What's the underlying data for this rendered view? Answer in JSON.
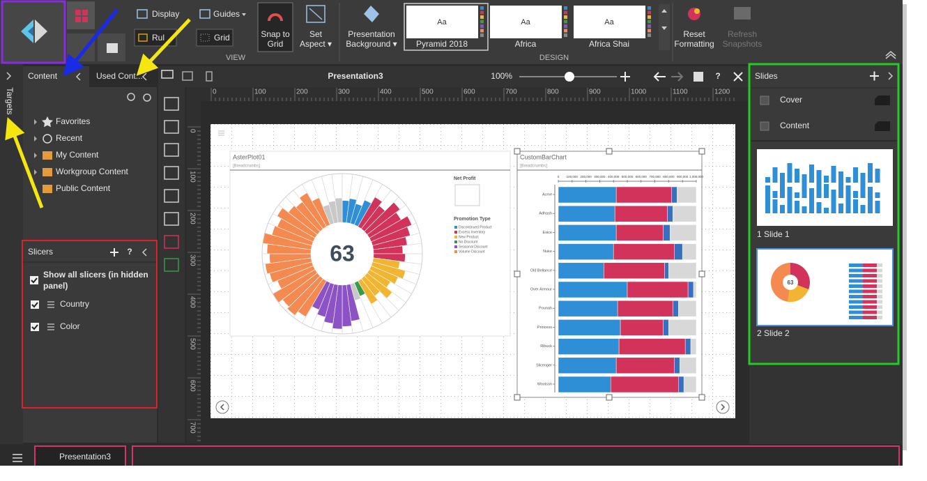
{
  "ribbon": {
    "display": "Display",
    "guides": "Guides",
    "ruler": "Rul",
    "grid": "Grid",
    "snap": [
      "Snap to",
      "Grid"
    ],
    "set_aspect": [
      "Set",
      "Aspect ▾"
    ],
    "view_group": "VIEW",
    "background": [
      "Presentation",
      "Background ▾"
    ],
    "themes": [
      {
        "sample": "Aa",
        "name": "Pyramid 2018"
      },
      {
        "sample": "Aa",
        "name": "Africa"
      },
      {
        "sample": "Aa",
        "name": "Africa Shai"
      }
    ],
    "design_group": "DESIGN",
    "reset": [
      "Reset",
      "Formatting"
    ],
    "refresh": [
      "Refresh",
      "Snapshots"
    ]
  },
  "left": {
    "targets": "Targets",
    "tabs": [
      "Content",
      "Used Cont..."
    ],
    "tree": [
      "Favorites",
      "Recent",
      "My Content",
      "Workgroup Content",
      "Public Content"
    ],
    "slicers": {
      "title": "Slicers",
      "help": "?",
      "show_all": [
        "Show all slicers (in hidden",
        "panel)"
      ],
      "items": [
        "Country",
        "Color"
      ]
    }
  },
  "toolbar": {
    "title": "Presentation3",
    "zoom": "100%",
    "help": "?"
  },
  "rulers": {
    "horizontal": [
      "0",
      "100",
      "200",
      "300",
      "400",
      "500",
      "600",
      "700",
      "800",
      "900",
      "1000",
      "1100",
      "1200"
    ],
    "vertical": [
      "0",
      "100",
      "200",
      "300",
      "400",
      "500",
      "600",
      "700"
    ]
  },
  "aster": {
    "title": "AsterPlot01",
    "breadcrumbs": "[Breadcrumbs]",
    "center": "63",
    "net_profit": "Net Profit",
    "promo_title": "Promotion Type",
    "legend": [
      {
        "name": "Discontinued Product",
        "color": "#2e8fd6"
      },
      {
        "name": "Excess Inventory",
        "color": "#d1335b"
      },
      {
        "name": "New Product",
        "color": "#f2b531"
      },
      {
        "name": "No Discount",
        "color": "#3a9a48"
      },
      {
        "name": "Seasonal Discount",
        "color": "#8c52c6"
      },
      {
        "name": "Volume Discount",
        "color": "#f58a50"
      }
    ],
    "wedges": [
      [
        "#2e8fd6",
        0.45
      ],
      [
        "#2e8fd6",
        0.5
      ],
      [
        "#2e8fd6",
        0.42
      ],
      [
        "#2e8fd6",
        0.55
      ],
      [
        "#d1335b",
        0.7
      ],
      [
        "#d1335b",
        0.6
      ],
      [
        "#d1335b",
        0.85
      ],
      [
        "#d1335b",
        0.75
      ],
      [
        "#d1335b",
        0.9
      ],
      [
        "#d1335b",
        0.8
      ],
      [
        "#d1335b",
        0.7
      ],
      [
        "#d1335b",
        0.6
      ],
      [
        "#d1335b",
        0.65
      ],
      [
        "#f2b531",
        0.55
      ],
      [
        "#f2b531",
        0.7
      ],
      [
        "#f2b531",
        0.6
      ],
      [
        "#f2b531",
        0.5
      ],
      [
        "#f2b531",
        0.65
      ],
      [
        "#f2b531",
        0.45
      ],
      [
        "#f2b531",
        0.55
      ],
      [
        "#3a9a48",
        0.3
      ],
      [
        "#c8c8c8",
        0.35
      ],
      [
        "#8c52c6",
        0.75
      ],
      [
        "#8c52c6",
        0.85
      ],
      [
        "#8c52c6",
        0.9
      ],
      [
        "#8c52c6",
        0.8
      ],
      [
        "#8c52c6",
        0.7
      ],
      [
        "#8c52c6",
        0.6
      ],
      [
        "#f58a50",
        0.85
      ],
      [
        "#f58a50",
        0.95
      ],
      [
        "#f58a50",
        0.9
      ],
      [
        "#f58a50",
        1.0
      ],
      [
        "#f58a50",
        0.8
      ],
      [
        "#f58a50",
        0.9
      ],
      [
        "#f58a50",
        0.95
      ],
      [
        "#f58a50",
        0.85
      ],
      [
        "#f58a50",
        0.9
      ],
      [
        "#f58a50",
        1.0
      ],
      [
        "#f58a50",
        0.85
      ],
      [
        "#f58a50",
        0.8
      ],
      [
        "#f58a50",
        0.9
      ],
      [
        "#f58a50",
        0.75
      ],
      [
        "#f58a50",
        0.7
      ],
      [
        "#f58a50",
        0.8
      ],
      [
        "#f58a50",
        0.6
      ],
      [
        "#c8c8c8",
        0.4
      ],
      [
        "#c8c8c8",
        0.45
      ],
      [
        "#c8c8c8",
        0.5
      ]
    ]
  },
  "bar": {
    "title": "CustomBarChart",
    "breadcrumbs": "[Breadcrumbs]",
    "axis": [
      "0",
      "100,000",
      "200,000",
      "300,000",
      "400,000",
      "500,000",
      "600,000",
      "700,000",
      "800,000",
      "900,000",
      "1,000,000"
    ],
    "categories": [
      "Acme",
      "Adhash",
      "Esice",
      "Nuke",
      "Old Bellance",
      "Over Armour",
      "Pounah",
      "Princess",
      "Ribuck",
      "Slicenger",
      "Woolson"
    ],
    "segment_colors": [
      "#2e8fd6",
      "#d1335b",
      "#3a6fc0",
      "#d8d8d8"
    ],
    "rows": [
      [
        42,
        40,
        4,
        14
      ],
      [
        41,
        38,
        4,
        17
      ],
      [
        42,
        34,
        5,
        19
      ],
      [
        40,
        44,
        6,
        10
      ],
      [
        33,
        44,
        3,
        20
      ],
      [
        50,
        44,
        4,
        2
      ],
      [
        43,
        40,
        4,
        13
      ],
      [
        45,
        31,
        4,
        20
      ],
      [
        44,
        48,
        4,
        4
      ],
      [
        42,
        42,
        4,
        12
      ],
      [
        38,
        49,
        4,
        9
      ]
    ]
  },
  "slides": {
    "title": "Slides",
    "sections": [
      "Cover",
      "Content"
    ],
    "thumbs": [
      "1 Slide 1",
      "2 Slide 2"
    ]
  },
  "bottom": {
    "tab": "Presentation3"
  }
}
